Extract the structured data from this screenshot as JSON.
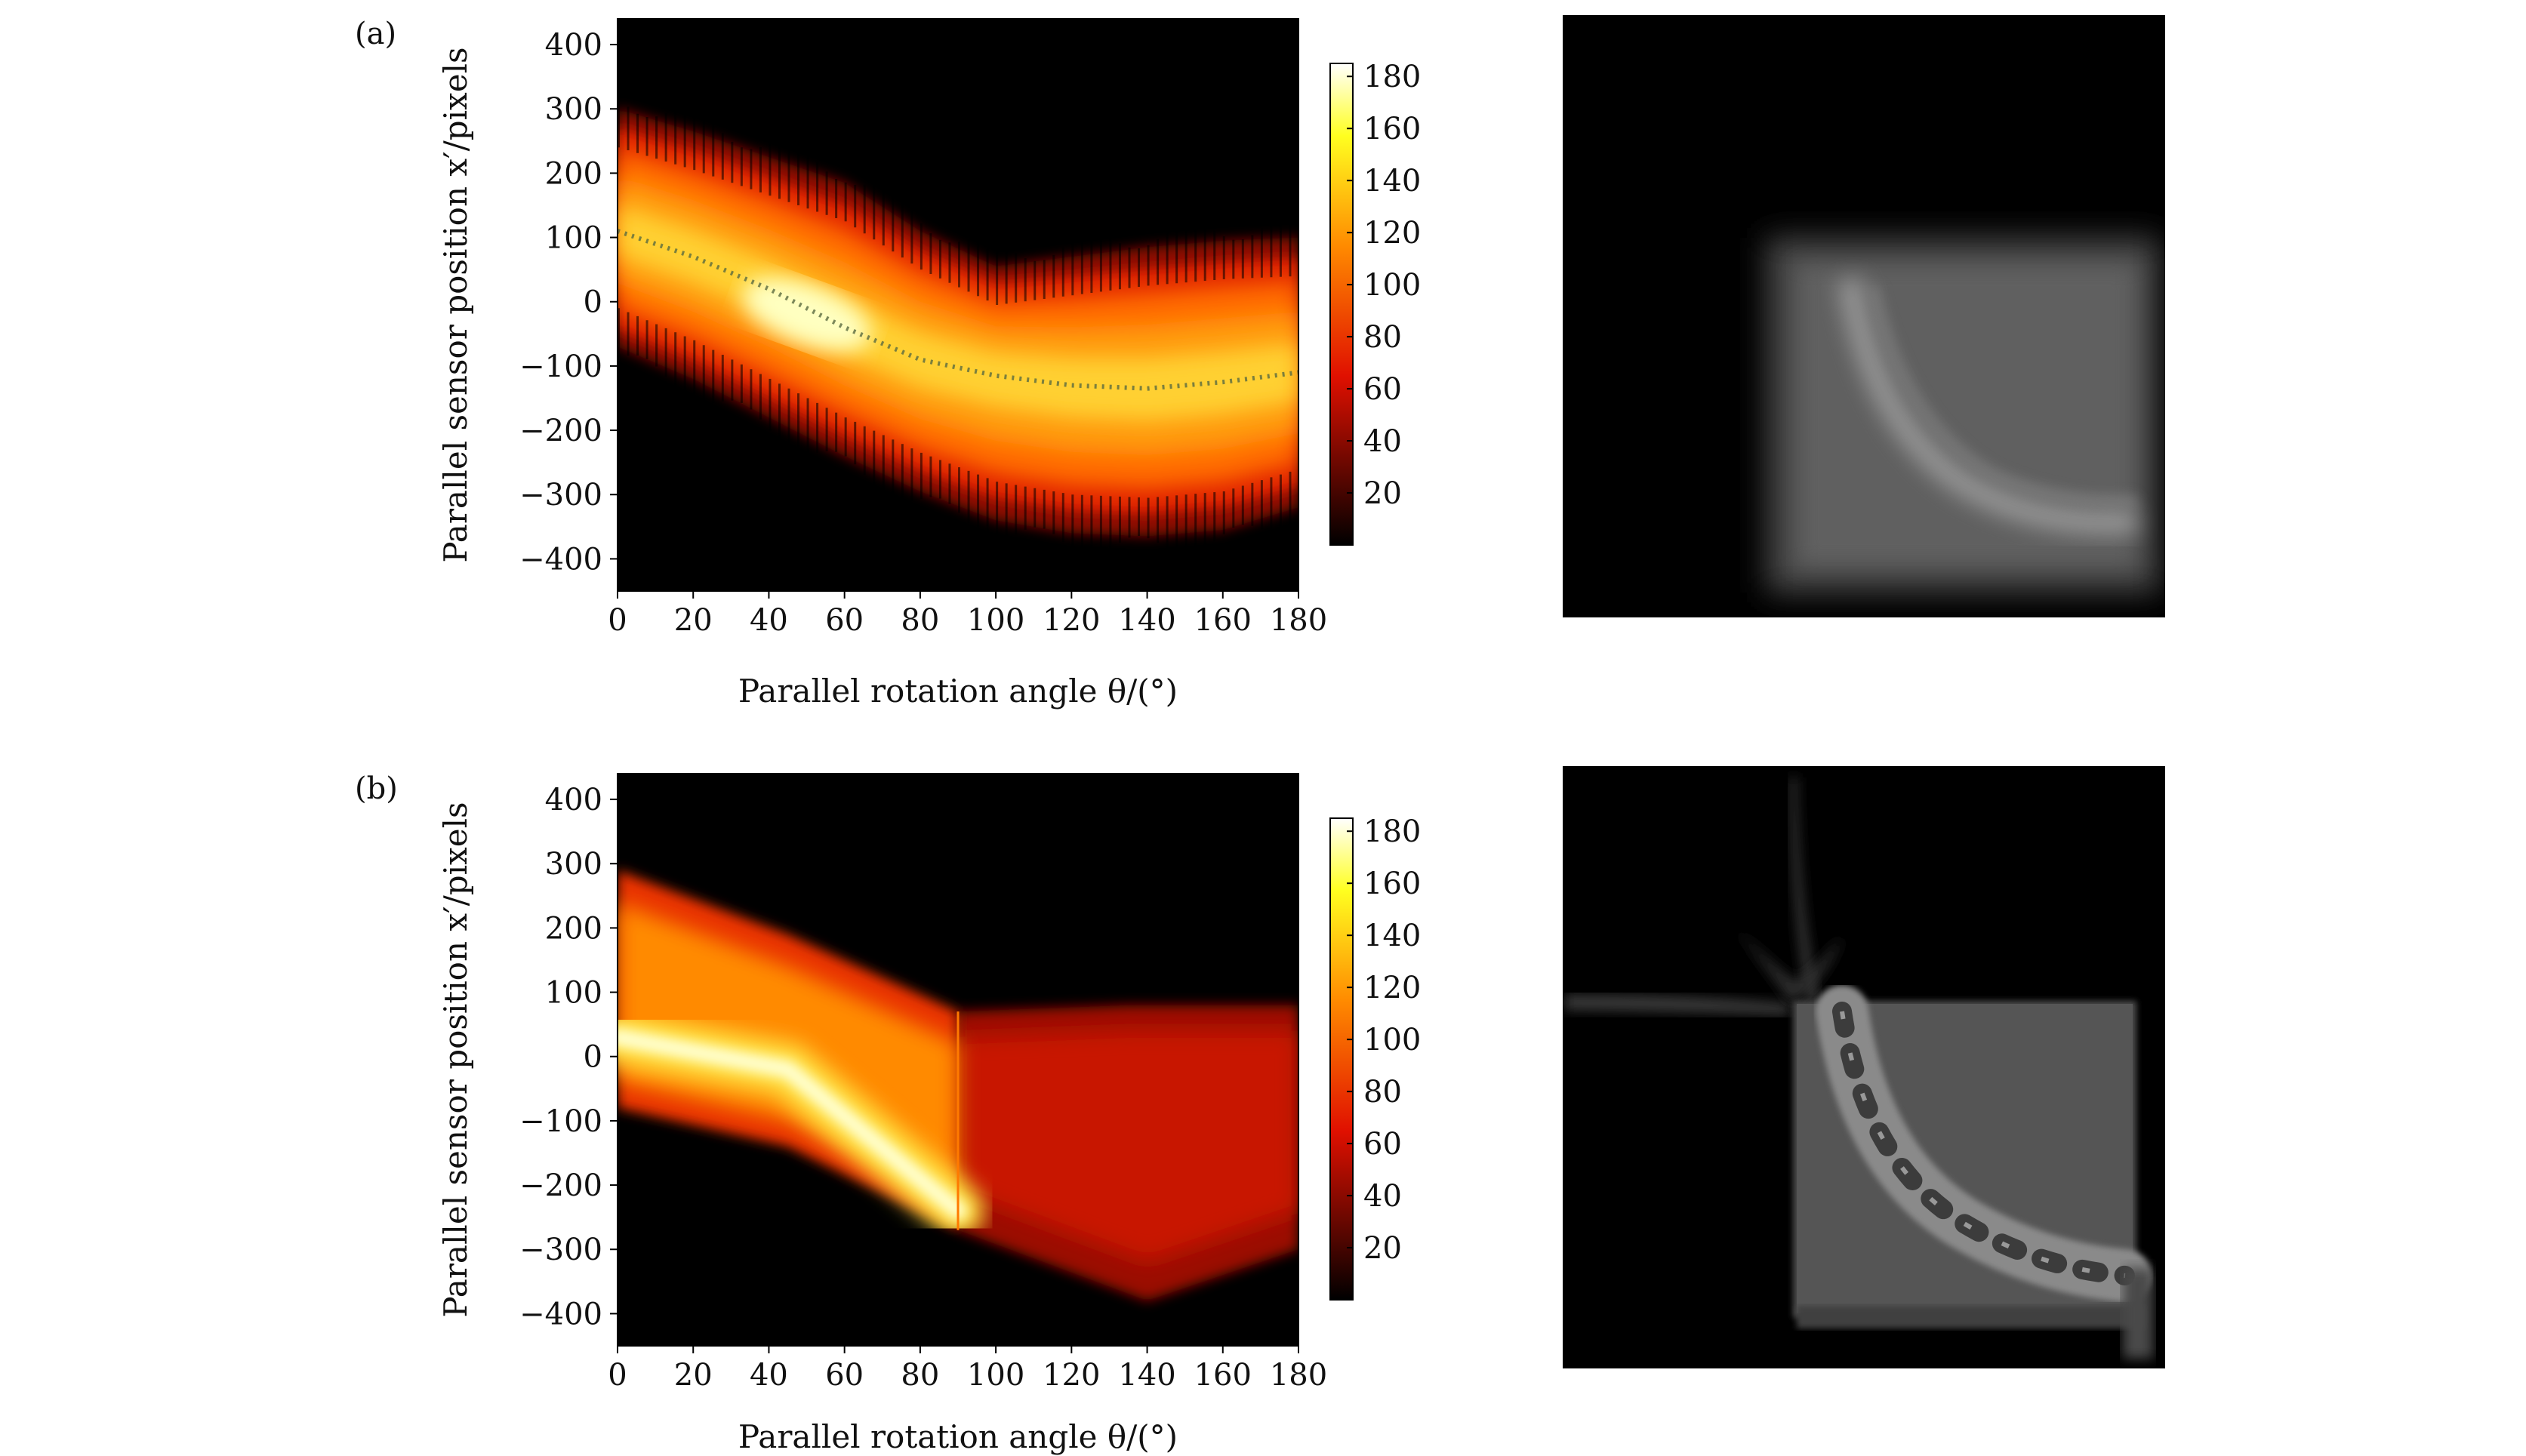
{
  "chart_data": [
    {
      "panel_label": "(a)",
      "type": "heatmap",
      "title": "",
      "xlabel": "Parallel rotation angle θ/(°)",
      "ylabel": "Parallel sensor position x′/pixels",
      "xlim": [
        0,
        180
      ],
      "ylim": [
        -450,
        440
      ],
      "x_ticks": [
        0,
        20,
        40,
        60,
        80,
        100,
        120,
        140,
        160,
        180
      ],
      "y_ticks": [
        -400,
        -300,
        -200,
        -100,
        0,
        100,
        200,
        300,
        400
      ],
      "y_tick_labels": [
        "−400",
        "−300",
        "−200",
        "−100",
        "0",
        "100",
        "200",
        "300",
        "400"
      ],
      "colorbar": {
        "range": [
          0,
          185
        ],
        "ticks": [
          20,
          40,
          60,
          80,
          100,
          120,
          140,
          160,
          180
        ]
      },
      "colormap": "hot",
      "band_center": [
        {
          "x": 0,
          "y": 110
        },
        {
          "x": 20,
          "y": 70
        },
        {
          "x": 40,
          "y": 20
        },
        {
          "x": 60,
          "y": -40
        },
        {
          "x": 80,
          "y": -90
        },
        {
          "x": 100,
          "y": -115
        },
        {
          "x": 120,
          "y": -130
        },
        {
          "x": 140,
          "y": -135
        },
        {
          "x": 160,
          "y": -125
        },
        {
          "x": 180,
          "y": -110
        }
      ],
      "band_upper_edge": [
        {
          "x": 0,
          "y": 300
        },
        {
          "x": 20,
          "y": 265
        },
        {
          "x": 40,
          "y": 225
        },
        {
          "x": 60,
          "y": 185
        },
        {
          "x": 80,
          "y": 110
        },
        {
          "x": 100,
          "y": 55
        },
        {
          "x": 120,
          "y": 70
        },
        {
          "x": 140,
          "y": 85
        },
        {
          "x": 160,
          "y": 95
        },
        {
          "x": 180,
          "y": 100
        }
      ],
      "band_lower_edge": [
        {
          "x": 0,
          "y": -70
        },
        {
          "x": 20,
          "y": -120
        },
        {
          "x": 40,
          "y": -180
        },
        {
          "x": 60,
          "y": -240
        },
        {
          "x": 80,
          "y": -295
        },
        {
          "x": 100,
          "y": -340
        },
        {
          "x": 120,
          "y": -360
        },
        {
          "x": 140,
          "y": -365
        },
        {
          "x": 160,
          "y": -355
        },
        {
          "x": 180,
          "y": -320
        }
      ],
      "peak_value": 180,
      "side_image": "reconstructed-image-blurred-square"
    },
    {
      "panel_label": "(b)",
      "type": "heatmap",
      "title": "",
      "xlabel": "Parallel rotation angle θ/(°)",
      "ylabel": "Parallel sensor position x′/pixels",
      "xlim": [
        0,
        180
      ],
      "ylim": [
        -450,
        440
      ],
      "x_ticks": [
        0,
        20,
        40,
        60,
        80,
        100,
        120,
        140,
        160,
        180
      ],
      "y_ticks": [
        -400,
        -300,
        -200,
        -100,
        0,
        100,
        200,
        300,
        400
      ],
      "y_tick_labels": [
        "−400",
        "−300",
        "−200",
        "−100",
        "0",
        "100",
        "200",
        "300",
        "400"
      ],
      "colorbar": {
        "range": [
          0,
          185
        ],
        "ticks": [
          20,
          40,
          60,
          80,
          100,
          120,
          140,
          160,
          180
        ]
      },
      "colormap": "hot",
      "discontinuity_at_angle": 90,
      "region_1": {
        "x_range": [
          0,
          90
        ],
        "upper_edge": [
          {
            "x": 0,
            "y": 290
          },
          {
            "x": 45,
            "y": 190
          },
          {
            "x": 90,
            "y": 70
          }
        ],
        "lower_edge": [
          {
            "x": 0,
            "y": -80
          },
          {
            "x": 45,
            "y": -140
          },
          {
            "x": 90,
            "y": -270
          }
        ],
        "bright_ridge": [
          {
            "x": 0,
            "y": 30
          },
          {
            "x": 45,
            "y": -20
          },
          {
            "x": 90,
            "y": -240
          }
        ]
      },
      "region_2": {
        "x_range": [
          90,
          180
        ],
        "upper_edge": [
          {
            "x": 90,
            "y": 70
          },
          {
            "x": 135,
            "y": 80
          },
          {
            "x": 180,
            "y": 80
          }
        ],
        "lower_edge": [
          {
            "x": 90,
            "y": -270
          },
          {
            "x": 140,
            "y": -380
          },
          {
            "x": 180,
            "y": -300
          }
        ],
        "level": 60
      },
      "peak_value": 180,
      "side_image": "reconstructed-image-dental-arch"
    }
  ]
}
